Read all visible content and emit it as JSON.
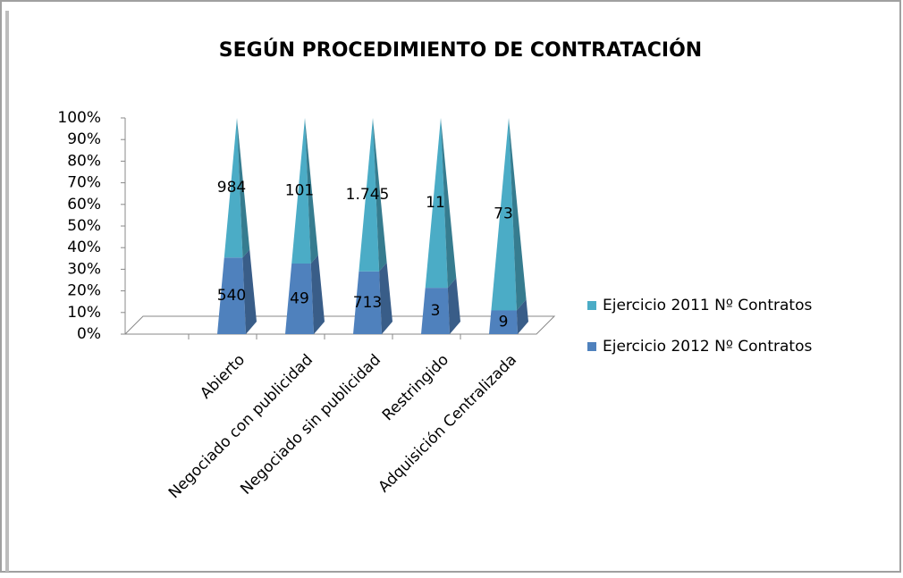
{
  "chart_data": {
    "type": "bar",
    "stacked": "percent",
    "title": "SEGÚN PROCEDIMIENTO DE CONTRATACIÓN",
    "categories": [
      "Abierto",
      "Negociado con publicidad",
      "Negociado sin publicidad",
      "Restringido",
      "Adquisición Centralizada"
    ],
    "series": [
      {
        "name": "Ejercicio 2011 Nº Contratos",
        "color": "#4bacc6",
        "values": [
          984,
          101,
          1745,
          11,
          73
        ],
        "value_labels": [
          "984",
          "101",
          "1.745",
          "11",
          "73"
        ]
      },
      {
        "name": "Ejercicio 2012 Nº Contratos",
        "color": "#4f81bd",
        "values": [
          540,
          49,
          713,
          3,
          9
        ]
      }
    ],
    "ylim": [
      0,
      100
    ],
    "yticks": [
      {
        "value": 0,
        "label": "0%"
      },
      {
        "value": 10,
        "label": "10%"
      },
      {
        "value": 20,
        "label": "20%"
      },
      {
        "value": 30,
        "label": "30%"
      },
      {
        "value": 40,
        "label": "40%"
      },
      {
        "value": 50,
        "label": "50%"
      },
      {
        "value": 60,
        "label": "60%"
      },
      {
        "value": 70,
        "label": "70%"
      },
      {
        "value": 80,
        "label": "80%"
      },
      {
        "value": 90,
        "label": "90%"
      },
      {
        "value": 100,
        "label": "100%"
      }
    ]
  }
}
